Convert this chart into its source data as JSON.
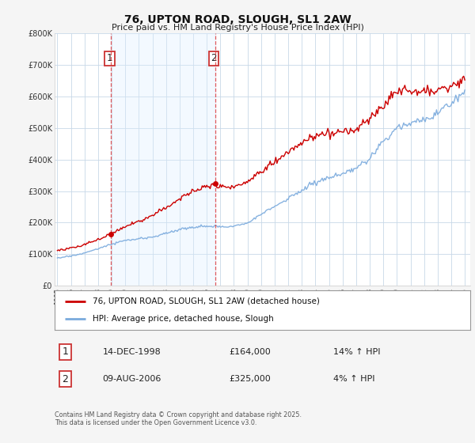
{
  "title": "76, UPTON ROAD, SLOUGH, SL1 2AW",
  "subtitle": "Price paid vs. HM Land Registry's House Price Index (HPI)",
  "background_color": "#f5f5f5",
  "plot_bg_color": "#ffffff",
  "grid_color": "#c8d8e8",
  "line1_color": "#cc0000",
  "line2_color": "#7aaadd",
  "shade_color": "#ddeeff",
  "ylim": [
    0,
    800000
  ],
  "yticks": [
    0,
    100000,
    200000,
    300000,
    400000,
    500000,
    600000,
    700000,
    800000
  ],
  "ytick_labels": [
    "£0",
    "£100K",
    "£200K",
    "£300K",
    "£400K",
    "£500K",
    "£600K",
    "£700K",
    "£800K"
  ],
  "sale1_year": 1998.96,
  "sale1_price": 164000,
  "sale1_label": "1",
  "sale1_date": "14-DEC-1998",
  "sale1_hpi": "14% ↑ HPI",
  "sale2_year": 2006.61,
  "sale2_price": 325000,
  "sale2_label": "2",
  "sale2_date": "09-AUG-2006",
  "sale2_hpi": "4% ↑ HPI",
  "legend1_label": "76, UPTON ROAD, SLOUGH, SL1 2AW (detached house)",
  "legend2_label": "HPI: Average price, detached house, Slough",
  "footer": "Contains HM Land Registry data © Crown copyright and database right 2025.\nThis data is licensed under the Open Government Licence v3.0.",
  "xtick_years": [
    1995,
    1996,
    1997,
    1998,
    1999,
    2000,
    2001,
    2002,
    2003,
    2004,
    2005,
    2006,
    2007,
    2008,
    2009,
    2010,
    2011,
    2012,
    2013,
    2014,
    2015,
    2016,
    2017,
    2018,
    2019,
    2020,
    2021,
    2022,
    2023,
    2024,
    2025
  ]
}
